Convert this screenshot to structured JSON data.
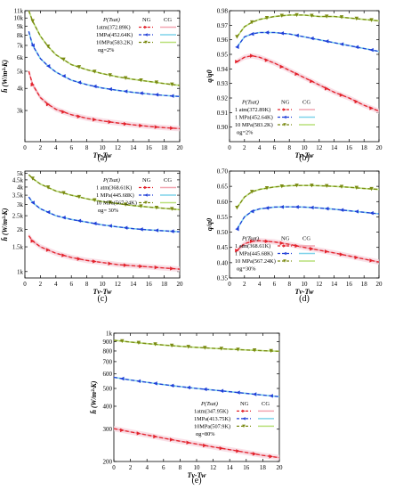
{
  "figure": {
    "background": "#ffffff"
  },
  "styles": {
    "series_colors": [
      "#e3222b",
      "#1f3fd8",
      "#7a8a12"
    ],
    "cg_colors": [
      "#f2a6b2",
      "#7fd3ea",
      "#b9e07a"
    ],
    "cg_band_color": "#f7d3dd",
    "markers": [
      "triangle-right",
      "triangle-left",
      "triangle-down"
    ]
  },
  "chart_data": [
    {
      "id": "a",
      "type": "line",
      "panel_label": "(a)",
      "xlabel": "Tv-Tw",
      "ylabel": "h̄ (W/m²·K)",
      "xlim": [
        0,
        20
      ],
      "ylim": [
        2000,
        11000
      ],
      "yscale": "log",
      "xticks": [
        0,
        2,
        4,
        6,
        8,
        10,
        12,
        14,
        16,
        18,
        20
      ],
      "yticks": [
        3000,
        4000,
        5000,
        6000,
        7000,
        8000,
        9000,
        10000,
        11000
      ],
      "ytick_labels": [
        "3k",
        "4k",
        "5k",
        "6k",
        "7k",
        "8k",
        "9k",
        "10k",
        "11k"
      ],
      "legend": {
        "header": [
          "P(Tsat)",
          "NG",
          "CG"
        ],
        "labels": [
          "1atm(372.89K)",
          "1MPa(452.64K)",
          "10MPa(583.2K)"
        ],
        "note": "αg=2%",
        "position": "top-right"
      },
      "series": [
        {
          "name": "1atm(372.89K)",
          "x": [
            0.5,
            1,
            2,
            3,
            4,
            6,
            8,
            10,
            12,
            14,
            16,
            18,
            20
          ],
          "y": [
            5000,
            4200,
            3550,
            3250,
            3050,
            2840,
            2710,
            2620,
            2550,
            2490,
            2440,
            2400,
            2370
          ]
        },
        {
          "name": "1MPa(452.64K)",
          "x": [
            0.5,
            1,
            2,
            3,
            4,
            6,
            8,
            10,
            12,
            14,
            16,
            18,
            20
          ],
          "y": [
            8400,
            7000,
            5900,
            5350,
            4950,
            4450,
            4200,
            4020,
            3900,
            3800,
            3720,
            3650,
            3600
          ]
        },
        {
          "name": "10MPa(583.2K)",
          "x": [
            0.5,
            1,
            2,
            3,
            4,
            6,
            8,
            10,
            12,
            14,
            16,
            18,
            20
          ],
          "y": [
            11000,
            9600,
            7900,
            6900,
            6200,
            5450,
            5100,
            4850,
            4650,
            4500,
            4380,
            4260,
            4160
          ]
        }
      ]
    },
    {
      "id": "b",
      "type": "line",
      "panel_label": "(b)",
      "xlabel": "Tv-Tw",
      "ylabel": "q/q0",
      "xlim": [
        0,
        20
      ],
      "ylim": [
        0.89,
        0.98
      ],
      "yscale": "linear",
      "xticks": [
        0,
        2,
        4,
        6,
        8,
        10,
        12,
        14,
        16,
        18,
        20
      ],
      "yticks": [
        0.9,
        0.91,
        0.92,
        0.93,
        0.94,
        0.95,
        0.96,
        0.97,
        0.98
      ],
      "ytick_labels": [
        "0.90",
        "0.91",
        "0.92",
        "0.93",
        "0.94",
        "0.95",
        "0.96",
        "0.97",
        "0.98"
      ],
      "legend": {
        "header": [
          "P(Tsat)",
          "NG",
          "CG"
        ],
        "labels": [
          "1 atm(372.89K)",
          "1 MPa(452.64K)",
          "10 MPa(583.2K)"
        ],
        "note": "αg=2%",
        "position": "bottom-left"
      },
      "series": [
        {
          "name": "1 atm(372.89K)",
          "x": [
            1,
            2,
            3,
            4,
            6,
            8,
            10,
            12,
            14,
            16,
            18,
            20
          ],
          "y": [
            0.945,
            0.948,
            0.949,
            0.948,
            0.944,
            0.939,
            0.934,
            0.929,
            0.924,
            0.92,
            0.915,
            0.911
          ]
        },
        {
          "name": "1 MPa(452.64K)",
          "x": [
            1,
            2,
            3,
            4,
            6,
            8,
            10,
            12,
            14,
            16,
            18,
            20
          ],
          "y": [
            0.955,
            0.962,
            0.964,
            0.965,
            0.965,
            0.964,
            0.962,
            0.96,
            0.958,
            0.956,
            0.954,
            0.952
          ]
        },
        {
          "name": "10 MPa(583.2K)",
          "x": [
            1,
            2,
            3,
            4,
            6,
            8,
            10,
            12,
            14,
            16,
            18,
            20
          ],
          "y": [
            0.962,
            0.969,
            0.972,
            0.974,
            0.976,
            0.977,
            0.977,
            0.976,
            0.976,
            0.975,
            0.974,
            0.973
          ]
        }
      ]
    },
    {
      "id": "c",
      "type": "line",
      "panel_label": "(c)",
      "xlabel": "Tv-Tw",
      "ylabel": "h̄ (W/m²·K)",
      "xlim": [
        0,
        20
      ],
      "ylim": [
        900,
        5200
      ],
      "yscale": "log",
      "xticks": [
        0,
        2,
        4,
        6,
        8,
        10,
        12,
        14,
        16,
        18,
        20
      ],
      "yticks": [
        1000,
        1500,
        2000,
        2500,
        3000,
        3500,
        4000,
        4500,
        5000
      ],
      "ytick_labels": [
        "1k",
        "1.5k",
        "2k",
        "2.5k",
        "3k",
        "3.5k",
        "4k",
        "4.5k",
        "5k"
      ],
      "legend": {
        "header": [
          "P(Tsat)",
          "NG",
          "CG"
        ],
        "labels": [
          "1 atm(368.61K)",
          "1 MPa(445.68K)",
          "10 MPa(567.24K)"
        ],
        "note": "αg= 30%",
        "position": "top-right"
      },
      "series": [
        {
          "name": "1 atm(368.61K)",
          "x": [
            0.5,
            1,
            2,
            4,
            6,
            8,
            10,
            12,
            14,
            16,
            18,
            20
          ],
          "y": [
            1800,
            1650,
            1500,
            1350,
            1260,
            1200,
            1160,
            1120,
            1100,
            1080,
            1060,
            1040
          ]
        },
        {
          "name": "1 MPa(445.68K)",
          "x": [
            0.5,
            1,
            2,
            4,
            6,
            8,
            10,
            12,
            14,
            16,
            18,
            20
          ],
          "y": [
            3400,
            3100,
            2800,
            2500,
            2350,
            2250,
            2150,
            2080,
            2020,
            1980,
            1950,
            1920
          ]
        },
        {
          "name": "10 MPa(567.24K)",
          "x": [
            0.5,
            1,
            2,
            4,
            6,
            8,
            10,
            12,
            14,
            16,
            18,
            20
          ],
          "y": [
            4900,
            4600,
            4200,
            3750,
            3500,
            3300,
            3150,
            3050,
            2950,
            2880,
            2820,
            2760
          ]
        }
      ]
    },
    {
      "id": "d",
      "type": "line",
      "panel_label": "(d)",
      "xlabel": "Tv-Tw",
      "ylabel": "q/q0",
      "xlim": [
        0,
        20
      ],
      "ylim": [
        0.35,
        0.7
      ],
      "yscale": "linear",
      "xticks": [
        0,
        2,
        4,
        6,
        8,
        10,
        12,
        14,
        16,
        18,
        20
      ],
      "yticks": [
        0.35,
        0.4,
        0.45,
        0.5,
        0.55,
        0.6,
        0.65,
        0.7
      ],
      "ytick_labels": [
        "0.35",
        "0.40",
        "0.45",
        "0.50",
        "0.55",
        "0.60",
        "0.65",
        "0.70"
      ],
      "legend": {
        "header": [
          "P(Tsat)",
          "NG",
          "CG"
        ],
        "labels": [
          "1 atm(368.61K)",
          "1 MPa(445.68K)",
          "10 MPa(567.24K)"
        ],
        "note": "αg=30%",
        "position": "bottom-left"
      },
      "series": [
        {
          "name": "1 atm(368.61K)",
          "x": [
            1,
            2,
            3,
            4,
            6,
            8,
            10,
            12,
            14,
            16,
            18,
            20
          ],
          "y": [
            0.44,
            0.462,
            0.47,
            0.472,
            0.468,
            0.46,
            0.45,
            0.441,
            0.432,
            0.422,
            0.412,
            0.402
          ]
        },
        {
          "name": "1 MPa(445.68K)",
          "x": [
            1,
            2,
            3,
            4,
            6,
            8,
            10,
            12,
            14,
            16,
            18,
            20
          ],
          "y": [
            0.51,
            0.55,
            0.568,
            0.576,
            0.582,
            0.583,
            0.582,
            0.579,
            0.575,
            0.57,
            0.565,
            0.56
          ]
        },
        {
          "name": "10 MPa(567.24K)",
          "x": [
            1,
            2,
            3,
            4,
            6,
            8,
            10,
            12,
            14,
            16,
            18,
            20
          ],
          "y": [
            0.58,
            0.615,
            0.632,
            0.64,
            0.648,
            0.652,
            0.653,
            0.652,
            0.65,
            0.647,
            0.643,
            0.64
          ]
        }
      ]
    },
    {
      "id": "e",
      "type": "line",
      "panel_label": "(e)",
      "xlabel": "Tv-Tw",
      "ylabel": "h̄ (W/m²·K)",
      "xlim": [
        0,
        20
      ],
      "ylim": [
        200,
        1000
      ],
      "yscale": "log",
      "xticks": [
        0,
        2,
        4,
        6,
        8,
        10,
        12,
        14,
        16,
        18,
        20
      ],
      "yticks": [
        200,
        300,
        400,
        500,
        600,
        700,
        800,
        900,
        1000
      ],
      "ytick_labels": [
        "200",
        "300",
        "400",
        "500",
        "600",
        "700",
        "800",
        "900",
        "1k"
      ],
      "legend": {
        "header": [
          "P(Tsat)",
          "NG",
          "CG"
        ],
        "labels": [
          "1atm(347.95K)",
          "1MPa(413.75K)",
          "10MPa(507.9K)"
        ],
        "note": "αg=80%",
        "position": "center-right"
      },
      "series": [
        {
          "name": "1atm(347.95K)",
          "x": [
            0,
            2,
            4,
            6,
            8,
            10,
            12,
            14,
            16,
            18,
            20
          ],
          "y": [
            302,
            290,
            279,
            268,
            258,
            249,
            240,
            232,
            224,
            216,
            210
          ]
        },
        {
          "name": "1MPa(413.75K)",
          "x": [
            0,
            2,
            4,
            6,
            8,
            10,
            12,
            14,
            16,
            18,
            20
          ],
          "y": [
            575,
            556,
            540,
            525,
            512,
            500,
            490,
            480,
            470,
            460,
            451
          ]
        },
        {
          "name": "10MPa(507.9K)",
          "x": [
            0,
            2,
            4,
            6,
            8,
            10,
            12,
            14,
            16,
            18,
            20
          ],
          "y": [
            915,
            895,
            878,
            862,
            849,
            837,
            827,
            818,
            810,
            803,
            797
          ]
        }
      ]
    }
  ]
}
